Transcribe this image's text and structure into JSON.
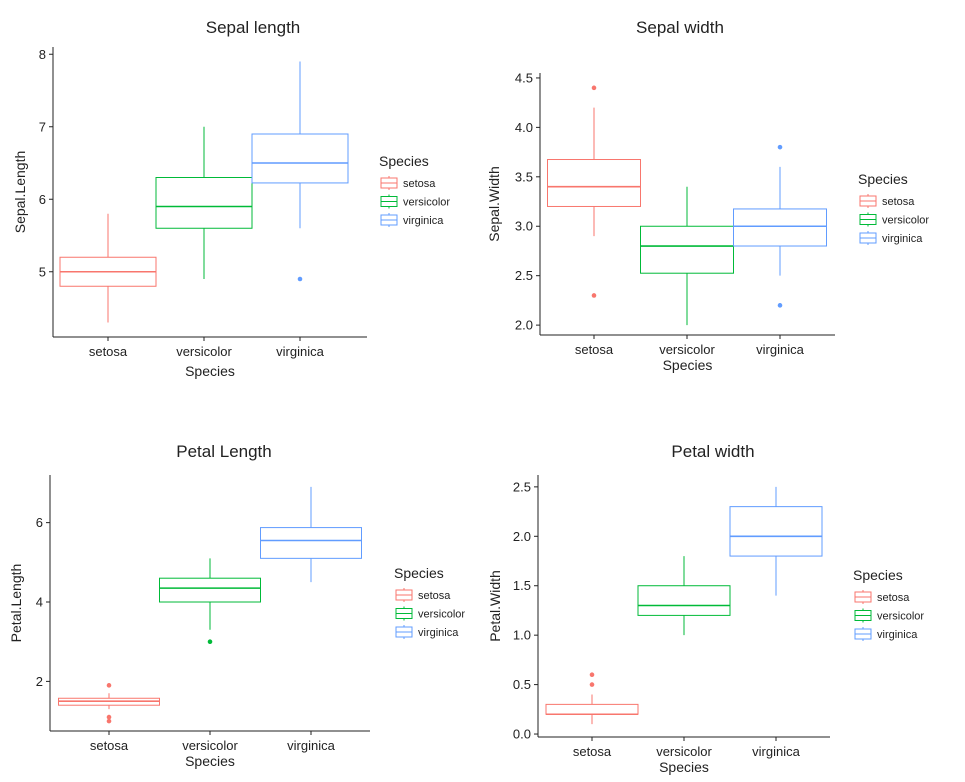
{
  "chart_data": [
    {
      "type": "box",
      "title": "Sepal length",
      "xlabel": "Species",
      "ylabel": "Sepal.Length",
      "categories": [
        "setosa",
        "versicolor",
        "virginica"
      ],
      "ylim": [
        4.1,
        8.1
      ],
      "yticks": [
        5,
        6,
        7,
        8
      ],
      "ytick_labels": [
        "5",
        "6",
        "7",
        "8"
      ],
      "boxes": [
        {
          "category": "setosa",
          "low": 4.3,
          "q1": 4.8,
          "median": 5.0,
          "q3": 5.2,
          "high": 5.8,
          "outliers": []
        },
        {
          "category": "versicolor",
          "low": 4.9,
          "q1": 5.6,
          "median": 5.9,
          "q3": 6.3,
          "high": 7.0,
          "outliers": []
        },
        {
          "category": "virginica",
          "low": 5.6,
          "q1": 6.225,
          "median": 6.5,
          "q3": 6.9,
          "high": 7.9,
          "outliers": [
            4.9
          ]
        }
      ],
      "legend": {
        "title": "Species",
        "position": "right",
        "items": [
          "setosa",
          "versicolor",
          "virginica"
        ]
      }
    },
    {
      "type": "box",
      "title": "Sepal width",
      "xlabel": "Species",
      "ylabel": "Sepal.Width",
      "categories": [
        "setosa",
        "versicolor",
        "virginica"
      ],
      "ylim": [
        1.9,
        4.55
      ],
      "yticks": [
        2.0,
        2.5,
        3.0,
        3.5,
        4.0,
        4.5
      ],
      "ytick_labels": [
        "2.0",
        "2.5",
        "3.0",
        "3.5",
        "4.0",
        "4.5"
      ],
      "boxes": [
        {
          "category": "setosa",
          "low": 2.9,
          "q1": 3.2,
          "median": 3.4,
          "q3": 3.675,
          "high": 4.2,
          "outliers": [
            4.4,
            2.3
          ]
        },
        {
          "category": "versicolor",
          "low": 2.0,
          "q1": 2.525,
          "median": 2.8,
          "q3": 3.0,
          "high": 3.4,
          "outliers": []
        },
        {
          "category": "virginica",
          "low": 2.5,
          "q1": 2.8,
          "median": 3.0,
          "q3": 3.175,
          "high": 3.6,
          "outliers": [
            3.8,
            2.2
          ]
        }
      ],
      "legend": {
        "title": "Species",
        "position": "right",
        "items": [
          "setosa",
          "versicolor",
          "virginica"
        ]
      }
    },
    {
      "type": "box",
      "title": "Petal Length",
      "xlabel": "Species",
      "ylabel": "Petal.Length",
      "categories": [
        "setosa",
        "versicolor",
        "virginica"
      ],
      "ylim": [
        0.75,
        7.2
      ],
      "yticks": [
        2,
        4,
        6
      ],
      "ytick_labels": [
        "2",
        "4",
        "6"
      ],
      "boxes": [
        {
          "category": "setosa",
          "low": 1.3,
          "q1": 1.4,
          "median": 1.5,
          "q3": 1.575,
          "high": 1.7,
          "outliers": [
            1.9,
            1.1,
            1.0
          ]
        },
        {
          "category": "versicolor",
          "low": 3.3,
          "q1": 4.0,
          "median": 4.35,
          "q3": 4.6,
          "high": 5.1,
          "outliers": [
            3.0
          ]
        },
        {
          "category": "virginica",
          "low": 4.5,
          "q1": 5.1,
          "median": 5.55,
          "q3": 5.875,
          "high": 6.9,
          "outliers": []
        }
      ],
      "legend": {
        "title": "Species",
        "position": "right",
        "items": [
          "setosa",
          "versicolor",
          "virginica"
        ]
      }
    },
    {
      "type": "box",
      "title": "Petal width",
      "xlabel": "Species",
      "ylabel": "Petal.Width",
      "categories": [
        "setosa",
        "versicolor",
        "virginica"
      ],
      "ylim": [
        -0.03,
        2.62
      ],
      "yticks": [
        0.0,
        0.5,
        1.0,
        1.5,
        2.0,
        2.5
      ],
      "ytick_labels": [
        "0.0",
        "0.5",
        "1.0",
        "1.5",
        "2.0",
        "2.5"
      ],
      "boxes": [
        {
          "category": "setosa",
          "low": 0.1,
          "q1": 0.2,
          "median": 0.2,
          "q3": 0.3,
          "high": 0.4,
          "outliers": [
            0.6,
            0.5
          ]
        },
        {
          "category": "versicolor",
          "low": 1.0,
          "q1": 1.2,
          "median": 1.3,
          "q3": 1.5,
          "high": 1.8,
          "outliers": []
        },
        {
          "category": "virginica",
          "low": 1.4,
          "q1": 1.8,
          "median": 2.0,
          "q3": 2.3,
          "high": 2.5,
          "outliers": []
        }
      ],
      "legend": {
        "title": "Species",
        "position": "right",
        "items": [
          "setosa",
          "versicolor",
          "virginica"
        ]
      }
    }
  ],
  "colors": {
    "setosa": "#F8766D",
    "versicolor": "#00BA38",
    "virginica": "#619CFF",
    "axis": "#222222"
  }
}
